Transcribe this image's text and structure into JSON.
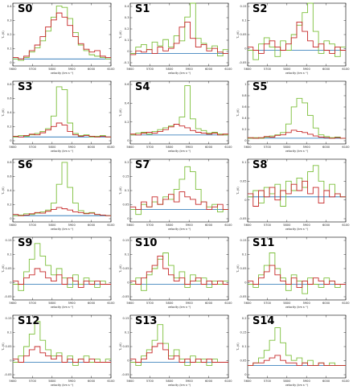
{
  "colors": {
    "green": "#7cbf3a",
    "red": "#c62828",
    "baseline": "#1f6fb2",
    "frame": "#000000"
  },
  "chart_data": [
    {
      "type": "line",
      "title": "S0",
      "xlabel": "velocity (km s⁻¹)",
      "ylabel": "Tₐ (K)",
      "xlim": [
        5600,
        6100
      ],
      "ylim": [
        -0.05,
        0.4
      ],
      "x_ticks": [
        "5600",
        "5700",
        "5800",
        "5900",
        "6000",
        "6100"
      ],
      "y_ticks": [
        "0.4",
        "0.3",
        "0.2",
        "0.1",
        "0"
      ],
      "series": [
        {
          "color": "green",
          "values": [
            0.0,
            -0.01,
            0.01,
            0.05,
            0.08,
            0.13,
            0.2,
            0.3,
            0.38,
            0.37,
            0.29,
            0.19,
            0.1,
            0.06,
            0.03,
            0.02,
            0.01,
            0.0
          ]
        },
        {
          "color": "red",
          "values": [
            0.01,
            0.0,
            0.02,
            0.06,
            0.1,
            0.16,
            0.23,
            0.28,
            0.33,
            0.3,
            0.24,
            0.16,
            0.11,
            0.07,
            0.05,
            0.06,
            0.02,
            0.01
          ]
        }
      ]
    },
    {
      "type": "line",
      "title": "S1",
      "xlabel": "velocity (km s⁻¹)",
      "ylabel": "Tₐ (K)",
      "xlim": [
        5600,
        6100
      ],
      "ylim": [
        -0.1,
        0.4
      ],
      "x_ticks": [
        "5600",
        "5700",
        "5800",
        "5900",
        "6000",
        "6100"
      ],
      "y_ticks": [
        "0.4",
        "0.3",
        "0.2",
        "0.1",
        "0",
        "-0.1"
      ],
      "series": [
        {
          "color": "green",
          "values": [
            0.0,
            0.05,
            0.07,
            0.03,
            0.09,
            0.06,
            0.11,
            0.05,
            0.14,
            0.1,
            0.29,
            0.4,
            0.12,
            0.08,
            0.04,
            0.06,
            -0.02,
            0.03
          ]
        },
        {
          "color": "red",
          "values": [
            -0.01,
            0.02,
            0.01,
            0.03,
            0.0,
            0.05,
            0.02,
            0.04,
            0.08,
            0.21,
            0.25,
            0.12,
            0.05,
            0.07,
            0.02,
            0.04,
            0.01,
            0.0
          ]
        }
      ]
    },
    {
      "type": "line",
      "title": "S2",
      "xlabel": "velocity (km s⁻¹)",
      "ylabel": "Tₐ (K)",
      "xlim": [
        5600,
        6100
      ],
      "ylim": [
        -0.05,
        0.15
      ],
      "x_ticks": [
        "5600",
        "5700",
        "5800",
        "5900",
        "6000",
        "6100"
      ],
      "y_ticks": [
        "0.15",
        "0.1",
        "0.05",
        "0",
        "-0.05"
      ],
      "series": [
        {
          "color": "green",
          "values": [
            0.0,
            -0.03,
            0.02,
            0.04,
            0.01,
            -0.02,
            0.03,
            0.0,
            0.05,
            0.08,
            0.12,
            0.15,
            0.06,
            -0.01,
            0.03,
            0.02,
            -0.02,
            0.01
          ]
        },
        {
          "color": "red",
          "values": [
            0.01,
            0.0,
            -0.01,
            0.02,
            0.03,
            0.01,
            0.0,
            0.02,
            0.04,
            0.09,
            0.06,
            0.03,
            0.01,
            0.02,
            0.0,
            -0.01,
            0.01,
            0.0
          ]
        }
      ]
    },
    {
      "type": "line",
      "title": "S3",
      "xlabel": "velocity (km s⁻¹)",
      "ylabel": "Tₐ (K)",
      "xlim": [
        5600,
        6100
      ],
      "ylim": [
        -0.1,
        0.8
      ],
      "x_ticks": [
        "5600",
        "5700",
        "5800",
        "5900",
        "6000",
        "6100"
      ],
      "y_ticks": [
        "0.8",
        "0.6",
        "0.4",
        "0.2",
        "0"
      ],
      "series": [
        {
          "color": "green",
          "values": [
            0.0,
            0.02,
            0.01,
            0.03,
            0.05,
            0.08,
            0.12,
            0.3,
            0.72,
            0.68,
            0.2,
            0.05,
            0.02,
            0.03,
            0.0,
            0.01,
            0.02,
            0.0
          ]
        },
        {
          "color": "red",
          "values": [
            0.01,
            0.0,
            0.02,
            0.04,
            0.03,
            0.06,
            0.1,
            0.15,
            0.2,
            0.17,
            0.08,
            0.03,
            0.01,
            0.02,
            0.01,
            0.0,
            0.01,
            0.0
          ]
        }
      ]
    },
    {
      "type": "line",
      "title": "S4",
      "xlabel": "velocity (km s⁻¹)",
      "ylabel": "Tₐ (K)",
      "xlim": [
        5600,
        6100
      ],
      "ylim": [
        -0.1,
        0.6
      ],
      "x_ticks": [
        "5600",
        "5700",
        "5800",
        "5900",
        "6000",
        "6100"
      ],
      "y_ticks": [
        "0.6",
        "0.4",
        "0.2",
        "0"
      ],
      "series": [
        {
          "color": "green",
          "values": [
            0.0,
            0.02,
            0.03,
            0.01,
            0.04,
            0.06,
            0.08,
            0.1,
            0.12,
            0.2,
            0.55,
            0.18,
            0.07,
            0.05,
            0.02,
            0.03,
            0.01,
            0.0
          ]
        },
        {
          "color": "red",
          "values": [
            0.01,
            0.0,
            0.02,
            0.03,
            0.02,
            0.04,
            0.06,
            0.09,
            0.12,
            0.1,
            0.08,
            0.05,
            0.03,
            0.02,
            0.01,
            0.02,
            0.0,
            0.01
          ]
        }
      ]
    },
    {
      "type": "line",
      "title": "S5",
      "xlabel": "velocity (km s⁻¹)",
      "ylabel": "Tₐ (K)",
      "xlim": [
        5600,
        6100
      ],
      "ylim": [
        -0.1,
        1.0
      ],
      "x_ticks": [
        "5600",
        "5700",
        "5800",
        "5900",
        "6000",
        "6100"
      ],
      "y_ticks": [
        "1",
        "0.8",
        "0.6",
        "0.4",
        "0.2",
        "0"
      ],
      "series": [
        {
          "color": "green",
          "values": [
            0.0,
            0.01,
            0.0,
            0.02,
            0.04,
            0.06,
            0.1,
            0.25,
            0.55,
            0.7,
            0.62,
            0.4,
            0.18,
            0.06,
            0.03,
            0.01,
            0.02,
            0.0
          ]
        },
        {
          "color": "red",
          "values": [
            0.01,
            0.0,
            0.01,
            0.03,
            0.02,
            0.05,
            0.06,
            0.1,
            0.14,
            0.12,
            0.1,
            0.07,
            0.04,
            0.02,
            0.01,
            0.0,
            0.01,
            0.0
          ]
        }
      ]
    },
    {
      "type": "line",
      "title": "S6",
      "xlabel": "velocity (km s⁻¹)",
      "ylabel": "Tₐ (K)",
      "xlim": [
        5600,
        6100
      ],
      "ylim": [
        -0.1,
        0.9
      ],
      "x_ticks": [
        "5600",
        "5700",
        "5800",
        "5900",
        "6000",
        "6100"
      ],
      "y_ticks": [
        "0.8",
        "0.6",
        "0.4",
        "0.2",
        "0"
      ],
      "series": [
        {
          "color": "green",
          "values": [
            0.0,
            0.01,
            0.03,
            0.02,
            0.04,
            0.06,
            0.09,
            0.2,
            0.5,
            0.85,
            0.45,
            0.2,
            0.08,
            0.04,
            0.05,
            0.02,
            0.01,
            0.0
          ]
        },
        {
          "color": "red",
          "values": [
            0.02,
            0.0,
            0.01,
            0.03,
            0.05,
            0.04,
            0.07,
            0.1,
            0.13,
            0.11,
            0.09,
            0.06,
            0.05,
            0.03,
            0.04,
            0.02,
            0.01,
            0.0
          ]
        }
      ]
    },
    {
      "type": "line",
      "title": "S7",
      "xlabel": "velocity (km s⁻¹)",
      "ylabel": "Tₐ (K)",
      "xlim": [
        5600,
        6100
      ],
      "ylim": [
        -0.05,
        0.2
      ],
      "x_ticks": [
        "5600",
        "5700",
        "5800",
        "5900",
        "6000",
        "6100"
      ],
      "y_ticks": [
        "0.2",
        "0.15",
        "0.1",
        "0.05",
        "0"
      ],
      "series": [
        {
          "color": "green",
          "values": [
            0.0,
            -0.02,
            0.02,
            0.01,
            0.03,
            0.02,
            0.05,
            0.04,
            0.08,
            0.12,
            0.17,
            0.15,
            0.08,
            0.03,
            0.01,
            0.02,
            -0.01,
            0.0
          ]
        },
        {
          "color": "red",
          "values": [
            0.01,
            0.0,
            0.03,
            0.01,
            0.05,
            0.02,
            0.04,
            0.06,
            0.03,
            0.07,
            0.05,
            0.04,
            0.02,
            0.03,
            0.0,
            0.01,
            0.02,
            0.0
          ]
        }
      ]
    },
    {
      "type": "line",
      "title": "S8",
      "xlabel": "velocity (km s⁻¹)",
      "ylabel": "Tₐ (K)",
      "xlim": [
        5600,
        6100
      ],
      "ylim": [
        -0.08,
        0.12
      ],
      "x_ticks": [
        "5600",
        "5700",
        "5800",
        "5900",
        "6000",
        "6100"
      ],
      "y_ticks": [
        "0.1",
        "0.05",
        "0",
        "-0.05"
      ],
      "series": [
        {
          "color": "green",
          "values": [
            0.0,
            0.02,
            -0.02,
            0.03,
            0.01,
            0.04,
            -0.03,
            0.05,
            0.02,
            0.06,
            0.03,
            0.08,
            0.1,
            0.05,
            0.02,
            0.04,
            0.01,
            0.0
          ]
        },
        {
          "color": "red",
          "values": [
            0.01,
            -0.03,
            0.02,
            0.0,
            0.03,
            -0.01,
            0.02,
            0.01,
            0.04,
            0.02,
            0.05,
            0.01,
            0.03,
            -0.02,
            0.02,
            0.0,
            0.01,
            0.0
          ]
        }
      ]
    },
    {
      "type": "line",
      "title": "S9",
      "xlabel": "velocity (km s⁻¹)",
      "ylabel": "Tₐ (K)",
      "xlim": [
        5600,
        6100
      ],
      "ylim": [
        -0.05,
        0.15
      ],
      "x_ticks": [
        "5600",
        "5700",
        "5800",
        "5900",
        "6000",
        "6100"
      ],
      "y_ticks": [
        "0.15",
        "0.1",
        "0.05",
        "0",
        "-0.05"
      ],
      "series": [
        {
          "color": "green",
          "values": [
            0.0,
            -0.02,
            0.04,
            0.08,
            0.13,
            0.09,
            0.06,
            0.03,
            0.05,
            0.02,
            -0.01,
            0.03,
            0.0,
            0.02,
            0.01,
            -0.01,
            0.01,
            0.0
          ]
        },
        {
          "color": "red",
          "values": [
            0.01,
            0.0,
            0.02,
            0.03,
            0.05,
            0.04,
            0.02,
            0.01,
            0.03,
            0.0,
            0.02,
            0.01,
            -0.01,
            0.01,
            0.0,
            0.01,
            0.0,
            0.0
          ]
        }
      ]
    },
    {
      "type": "line",
      "title": "S10",
      "xlabel": "velocity (km s⁻¹)",
      "ylabel": "Tₐ (K)",
      "xlim": [
        5600,
        6100
      ],
      "ylim": [
        -0.05,
        0.15
      ],
      "x_ticks": [
        "5600",
        "5700",
        "5800",
        "5900",
        "6000",
        "6100"
      ],
      "y_ticks": [
        "0.15",
        "0.1",
        "0.05",
        "0",
        "-0.05"
      ],
      "series": [
        {
          "color": "green",
          "values": [
            0.0,
            0.02,
            -0.02,
            0.03,
            0.05,
            0.08,
            0.1,
            0.06,
            0.02,
            0.04,
            -0.01,
            0.03,
            0.01,
            0.02,
            -0.01,
            0.01,
            0.0,
            0.01
          ]
        },
        {
          "color": "red",
          "values": [
            0.01,
            0.0,
            0.02,
            0.04,
            0.06,
            0.09,
            0.05,
            0.03,
            0.01,
            0.02,
            0.0,
            0.01,
            0.02,
            0.0,
            0.01,
            0.0,
            0.01,
            0.0
          ]
        }
      ]
    },
    {
      "type": "line",
      "title": "S11",
      "xlabel": "velocity (km s⁻¹)",
      "ylabel": "Tₐ (K)",
      "xlim": [
        5600,
        6100
      ],
      "ylim": [
        -0.05,
        0.15
      ],
      "x_ticks": [
        "5600",
        "5700",
        "5800",
        "5900",
        "6000",
        "6100"
      ],
      "y_ticks": [
        "0.15",
        "0.1",
        "0.05",
        "0",
        "-0.05"
      ],
      "series": [
        {
          "color": "green",
          "values": [
            0.0,
            -0.01,
            0.03,
            0.06,
            0.1,
            0.05,
            0.02,
            -0.02,
            0.03,
            0.01,
            -0.03,
            0.02,
            0.0,
            -0.01,
            0.02,
            0.01,
            -0.01,
            0.0
          ]
        },
        {
          "color": "red",
          "values": [
            0.01,
            0.0,
            0.02,
            0.04,
            0.06,
            0.03,
            0.01,
            0.0,
            0.02,
            -0.01,
            0.01,
            0.0,
            0.02,
            0.01,
            0.0,
            0.01,
            0.0,
            0.0
          ]
        }
      ]
    },
    {
      "type": "line",
      "title": "S12",
      "xlabel": "velocity (km s⁻¹)",
      "ylabel": "Tₐ (K)",
      "xlim": [
        5600,
        6100
      ],
      "ylim": [
        -0.05,
        0.15
      ],
      "x_ticks": [
        "5600",
        "5700",
        "5800",
        "5900",
        "6000",
        "6100"
      ],
      "y_ticks": [
        "0.15",
        "0.1",
        "0.05",
        "0",
        "-0.05"
      ],
      "series": [
        {
          "color": "green",
          "values": [
            0.0,
            0.02,
            0.05,
            0.09,
            0.13,
            0.07,
            0.04,
            0.02,
            0.03,
            0.0,
            0.02,
            -0.01,
            0.01,
            0.02,
            0.0,
            0.01,
            0.0,
            0.01
          ]
        },
        {
          "color": "red",
          "values": [
            0.01,
            0.0,
            0.02,
            0.04,
            0.05,
            0.03,
            0.02,
            0.01,
            0.02,
            0.0,
            0.01,
            0.0,
            0.01,
            0.0,
            0.01,
            0.0,
            0.0,
            0.0
          ]
        }
      ]
    },
    {
      "type": "line",
      "title": "S13",
      "xlabel": "velocity (km s⁻¹)",
      "ylabel": "Tₐ (K)",
      "xlim": [
        5600,
        6100
      ],
      "ylim": [
        -0.05,
        0.15
      ],
      "x_ticks": [
        "5600",
        "5700",
        "5800",
        "5900",
        "6000",
        "6100"
      ],
      "y_ticks": [
        "0.15",
        "0.1",
        "0.05",
        "0",
        "-0.05"
      ],
      "series": [
        {
          "color": "green",
          "values": [
            0.0,
            -0.01,
            0.02,
            0.04,
            0.07,
            0.12,
            0.06,
            0.02,
            0.04,
            0.01,
            -0.01,
            0.02,
            0.0,
            0.01,
            -0.01,
            0.01,
            0.0,
            0.0
          ]
        },
        {
          "color": "red",
          "values": [
            0.01,
            0.0,
            0.01,
            0.03,
            0.05,
            0.06,
            0.04,
            0.01,
            0.02,
            0.0,
            0.01,
            0.0,
            0.01,
            0.0,
            0.01,
            0.0,
            0.0,
            0.0
          ]
        }
      ]
    },
    {
      "type": "line",
      "title": "S14",
      "xlabel": "velocity (km s⁻¹)",
      "ylabel": "Tₐ (K)",
      "xlim": [
        5600,
        6100
      ],
      "ylim": [
        -0.05,
        0.2
      ],
      "x_ticks": [
        "5600",
        "5700",
        "5800",
        "5900",
        "6000",
        "6100"
      ],
      "y_ticks": [
        "0.2",
        "0.15",
        "0.1",
        "0.05",
        "0"
      ],
      "series": [
        {
          "color": "green",
          "values": [
            0.0,
            0.01,
            0.03,
            0.06,
            0.1,
            0.15,
            0.09,
            0.04,
            0.02,
            0.03,
            0.01,
            0.02,
            0.0,
            0.01,
            0.0,
            0.01,
            0.0,
            0.0
          ]
        },
        {
          "color": "red",
          "values": [
            0.0,
            0.01,
            0.01,
            0.02,
            0.03,
            0.04,
            0.02,
            0.01,
            0.01,
            0.0,
            0.01,
            0.0,
            0.0,
            0.01,
            0.0,
            0.0,
            0.0,
            0.0
          ]
        }
      ]
    }
  ]
}
